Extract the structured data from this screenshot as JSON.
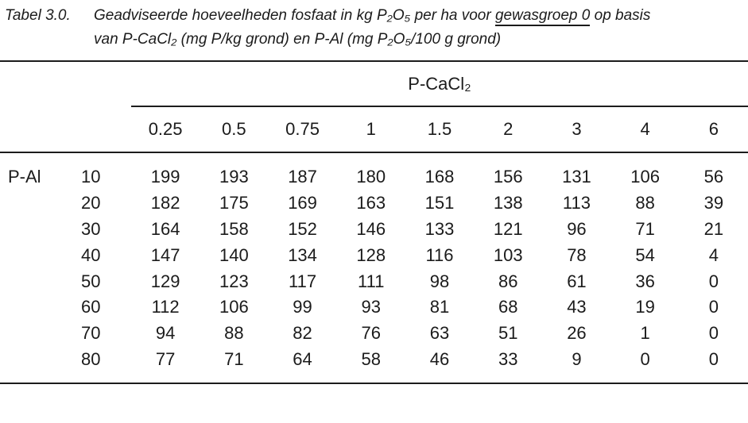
{
  "colors": {
    "text": "#1b1b1b",
    "background": "#ffffff",
    "rule": "#1c1c1c"
  },
  "caption": {
    "label": "Tabel 3.0.",
    "line1_pre": "Geadviseerde hoeveelheden fosfaat in kg P₂O₅ per ha voor ",
    "line1_underlined": "gewasgroep 0",
    "line1_post": " op basis",
    "line2": "van P-CaCl₂ (mg P/kg grond) en P-Al (mg P₂O₅/100 g grond)"
  },
  "table": {
    "col_group_header": "P-CaCl₂",
    "row_group_header": "P-Al",
    "column_headers": [
      "0.25",
      "0.5",
      "0.75",
      "1",
      "1.5",
      "2",
      "3",
      "4",
      "6"
    ],
    "rows": [
      {
        "p_al": "10",
        "values": [
          "199",
          "193",
          "187",
          "180",
          "168",
          "156",
          "131",
          "106",
          "56"
        ]
      },
      {
        "p_al": "20",
        "values": [
          "182",
          "175",
          "169",
          "163",
          "151",
          "138",
          "113",
          "88",
          "39"
        ]
      },
      {
        "p_al": "30",
        "values": [
          "164",
          "158",
          "152",
          "146",
          "133",
          "121",
          "96",
          "71",
          "21"
        ]
      },
      {
        "p_al": "40",
        "values": [
          "147",
          "140",
          "134",
          "128",
          "116",
          "103",
          "78",
          "54",
          "4"
        ]
      },
      {
        "p_al": "50",
        "values": [
          "129",
          "123",
          "117",
          "111",
          "98",
          "86",
          "61",
          "36",
          "0"
        ]
      },
      {
        "p_al": "60",
        "values": [
          "112",
          "106",
          "99",
          "93",
          "81",
          "68",
          "43",
          "19",
          "0"
        ]
      },
      {
        "p_al": "70",
        "values": [
          "94",
          "88",
          "82",
          "76",
          "63",
          "51",
          "26",
          "1",
          "0"
        ]
      },
      {
        "p_al": "80",
        "values": [
          "77",
          "71",
          "64",
          "58",
          "46",
          "33",
          "9",
          "0",
          "0"
        ]
      }
    ]
  }
}
